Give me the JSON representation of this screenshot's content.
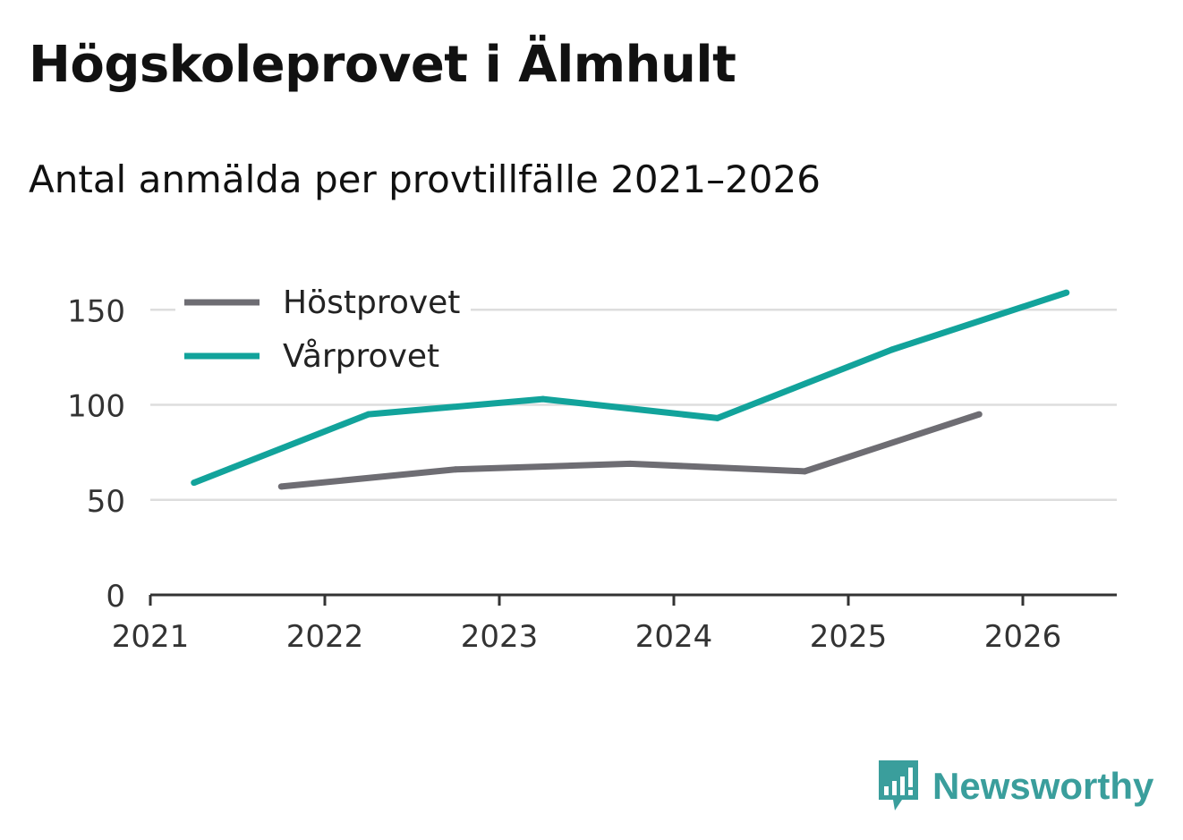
{
  "title": "Högskoleprovet i Älmhult",
  "subtitle": "Antal anmälda per provtillfälle 2021–2026",
  "brand": {
    "name": "Newsworthy",
    "icon": "newsworthy-logo-icon",
    "color": "#3a9e9c"
  },
  "chart_data": {
    "type": "line",
    "title": "Högskoleprovet i Älmhult",
    "subtitle": "Antal anmälda per provtillfälle 2021–2026",
    "xlabel": "",
    "ylabel": "",
    "xlim": [
      2021,
      2026.55
    ],
    "ylim": [
      0,
      170
    ],
    "xticks": [
      "2021",
      "2022",
      "2023",
      "2024",
      "2025",
      "2026"
    ],
    "yticks": [
      "0",
      "50",
      "100",
      "150"
    ],
    "grid": true,
    "legend": "top-left",
    "series": [
      {
        "name": "Höstprovet",
        "color": "#6e6d73",
        "x": [
          2021.75,
          2022.75,
          2023.75,
          2024.75,
          2025.75
        ],
        "y": [
          57,
          66,
          69,
          65,
          95
        ]
      },
      {
        "name": "Vårprovet",
        "color": "#12a39b",
        "x": [
          2021.25,
          2022.25,
          2023.25,
          2024.25,
          2025.25,
          2026.25
        ],
        "y": [
          59,
          95,
          103,
          93,
          129,
          159
        ]
      }
    ]
  }
}
